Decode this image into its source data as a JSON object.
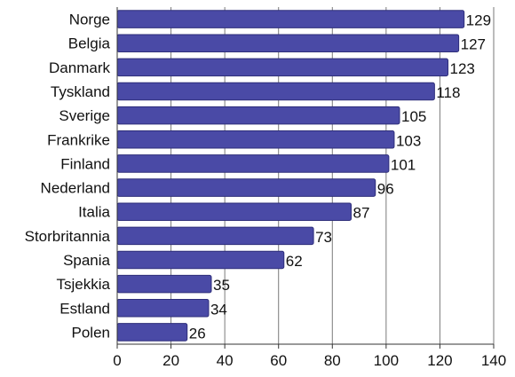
{
  "chart_data": {
    "type": "bar",
    "orientation": "horizontal",
    "categories": [
      "Norge",
      "Belgia",
      "Danmark",
      "Tyskland",
      "Sverige",
      "Frankrike",
      "Finland",
      "Nederland",
      "Italia",
      "Storbritannia",
      "Spania",
      "Tsjekkia",
      "Estland",
      "Polen"
    ],
    "values": [
      129,
      127,
      123,
      118,
      105,
      103,
      101,
      96,
      87,
      73,
      62,
      35,
      34,
      26
    ],
    "xlim": [
      0,
      140
    ],
    "xticks": [
      0,
      20,
      40,
      60,
      80,
      100,
      120,
      140
    ],
    "grid": "vertical",
    "data_labels": true,
    "colors": {
      "bar": "#4a4aa6",
      "bar_edge": "#2e2e7a",
      "grid": "#7a7a7a",
      "axis": "#333333"
    }
  }
}
